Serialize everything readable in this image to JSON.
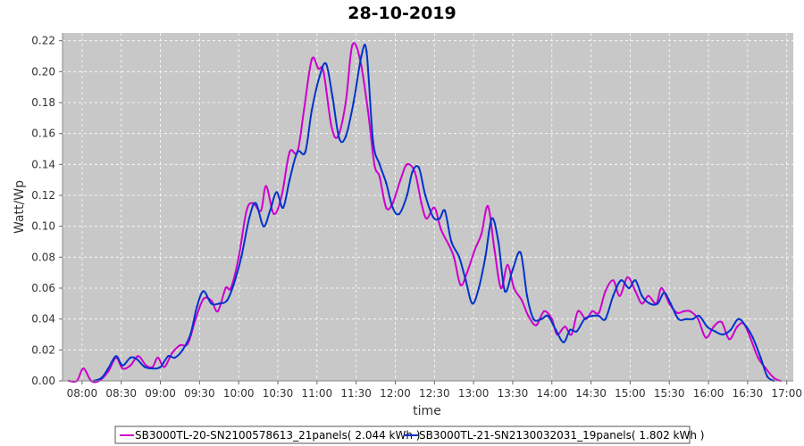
{
  "chart_data": {
    "type": "line",
    "title": "28-10-2019",
    "xlabel": "time",
    "ylabel": "Watt/Wp",
    "xlim": [
      "07:45",
      "17:05"
    ],
    "ylim": [
      0,
      0.225
    ],
    "x_ticks": [
      "08:00",
      "08:30",
      "09:00",
      "09:30",
      "10:00",
      "10:30",
      "11:00",
      "11:30",
      "12:00",
      "12:30",
      "13:00",
      "13:30",
      "14:00",
      "14:30",
      "15:00",
      "15:30",
      "16:00",
      "16:30",
      "17:00"
    ],
    "y_ticks": [
      "0.00",
      "0.02",
      "0.04",
      "0.06",
      "0.08",
      "0.10",
      "0.12",
      "0.14",
      "0.16",
      "0.18",
      "0.20",
      "0.22"
    ],
    "grid": true,
    "legend": "bottom-center",
    "series": [
      {
        "name": "SB3000TL-20-SN2100578613_21panels( 2.044 kWh )",
        "color": "#cc00cc",
        "points": [
          [
            "07:50",
            0.0
          ],
          [
            "07:56",
            0.0
          ],
          [
            "08:01",
            0.008
          ],
          [
            "08:07",
            0.0
          ],
          [
            "08:13",
            0.0
          ],
          [
            "08:20",
            0.006
          ],
          [
            "08:26",
            0.015
          ],
          [
            "08:31",
            0.008
          ],
          [
            "08:37",
            0.01
          ],
          [
            "08:43",
            0.016
          ],
          [
            "08:49",
            0.01
          ],
          [
            "08:54",
            0.009
          ],
          [
            "08:58",
            0.015
          ],
          [
            "09:03",
            0.009
          ],
          [
            "09:09",
            0.018
          ],
          [
            "09:15",
            0.023
          ],
          [
            "09:21",
            0.024
          ],
          [
            "09:27",
            0.04
          ],
          [
            "09:33",
            0.053
          ],
          [
            "09:39",
            0.052
          ],
          [
            "09:44",
            0.045
          ],
          [
            "09:50",
            0.06
          ],
          [
            "09:54",
            0.06
          ],
          [
            "10:00",
            0.08
          ],
          [
            "10:06",
            0.11
          ],
          [
            "10:11",
            0.115
          ],
          [
            "10:17",
            0.11
          ],
          [
            "10:21",
            0.126
          ],
          [
            "10:27",
            0.108
          ],
          [
            "10:33",
            0.12
          ],
          [
            "10:39",
            0.148
          ],
          [
            "10:45",
            0.148
          ],
          [
            "10:50",
            0.175
          ],
          [
            "10:56",
            0.208
          ],
          [
            "11:01",
            0.202
          ],
          [
            "11:05",
            0.2
          ],
          [
            "11:11",
            0.165
          ],
          [
            "11:16",
            0.158
          ],
          [
            "11:22",
            0.18
          ],
          [
            "11:27",
            0.217
          ],
          [
            "11:33",
            0.208
          ],
          [
            "11:39",
            0.175
          ],
          [
            "11:44",
            0.14
          ],
          [
            "11:48",
            0.132
          ],
          [
            "11:53",
            0.112
          ],
          [
            "11:58",
            0.115
          ],
          [
            "12:04",
            0.13
          ],
          [
            "12:09",
            0.14
          ],
          [
            "12:15",
            0.135
          ],
          [
            "12:20",
            0.115
          ],
          [
            "12:24",
            0.105
          ],
          [
            "12:30",
            0.112
          ],
          [
            "12:35",
            0.098
          ],
          [
            "12:41",
            0.088
          ],
          [
            "12:45",
            0.08
          ],
          [
            "12:50",
            0.062
          ],
          [
            "12:55",
            0.07
          ],
          [
            "13:01",
            0.085
          ],
          [
            "13:06",
            0.095
          ],
          [
            "13:11",
            0.113
          ],
          [
            "13:16",
            0.085
          ],
          [
            "13:21",
            0.06
          ],
          [
            "13:26",
            0.075
          ],
          [
            "13:31",
            0.06
          ],
          [
            "13:37",
            0.052
          ],
          [
            "13:42",
            0.042
          ],
          [
            "13:48",
            0.036
          ],
          [
            "13:54",
            0.045
          ],
          [
            "14:00",
            0.04
          ],
          [
            "14:04",
            0.03
          ],
          [
            "14:10",
            0.035
          ],
          [
            "14:15",
            0.03
          ],
          [
            "14:20",
            0.045
          ],
          [
            "14:26",
            0.04
          ],
          [
            "14:31",
            0.045
          ],
          [
            "14:36",
            0.044
          ],
          [
            "14:41",
            0.058
          ],
          [
            "14:47",
            0.065
          ],
          [
            "14:52",
            0.055
          ],
          [
            "14:58",
            0.067
          ],
          [
            "15:04",
            0.058
          ],
          [
            "15:09",
            0.05
          ],
          [
            "15:14",
            0.055
          ],
          [
            "15:20",
            0.05
          ],
          [
            "15:24",
            0.06
          ],
          [
            "15:30",
            0.05
          ],
          [
            "15:36",
            0.044
          ],
          [
            "15:41",
            0.045
          ],
          [
            "15:46",
            0.045
          ],
          [
            "15:52",
            0.04
          ],
          [
            "15:58",
            0.028
          ],
          [
            "16:04",
            0.035
          ],
          [
            "16:10",
            0.038
          ],
          [
            "16:16",
            0.027
          ],
          [
            "16:22",
            0.035
          ],
          [
            "16:27",
            0.037
          ],
          [
            "16:32",
            0.028
          ],
          [
            "16:38",
            0.015
          ],
          [
            "16:44",
            0.008
          ],
          [
            "16:50",
            0.002
          ],
          [
            "16:55",
            0.0
          ]
        ]
      },
      {
        "name": "SB3000TL-21-SN2130032031_19panels( 1.802 kWh )",
        "color": "#0033cc",
        "points": [
          [
            "08:09",
            0.0
          ],
          [
            "08:15",
            0.002
          ],
          [
            "08:20",
            0.008
          ],
          [
            "08:26",
            0.016
          ],
          [
            "08:31",
            0.01
          ],
          [
            "08:37",
            0.015
          ],
          [
            "08:42",
            0.014
          ],
          [
            "08:48",
            0.009
          ],
          [
            "08:54",
            0.008
          ],
          [
            "09:00",
            0.009
          ],
          [
            "09:06",
            0.016
          ],
          [
            "09:11",
            0.015
          ],
          [
            "09:17",
            0.02
          ],
          [
            "09:23",
            0.03
          ],
          [
            "09:28",
            0.048
          ],
          [
            "09:33",
            0.058
          ],
          [
            "09:39",
            0.05
          ],
          [
            "09:45",
            0.05
          ],
          [
            "09:51",
            0.052
          ],
          [
            "09:56",
            0.062
          ],
          [
            "10:02",
            0.08
          ],
          [
            "10:08",
            0.105
          ],
          [
            "10:13",
            0.115
          ],
          [
            "10:19",
            0.1
          ],
          [
            "10:24",
            0.11
          ],
          [
            "10:29",
            0.122
          ],
          [
            "10:34",
            0.112
          ],
          [
            "10:39",
            0.13
          ],
          [
            "10:45",
            0.148
          ],
          [
            "10:51",
            0.148
          ],
          [
            "10:56",
            0.175
          ],
          [
            "11:02",
            0.197
          ],
          [
            "11:07",
            0.205
          ],
          [
            "11:12",
            0.183
          ],
          [
            "11:17",
            0.157
          ],
          [
            "11:22",
            0.158
          ],
          [
            "11:28",
            0.18
          ],
          [
            "11:34",
            0.21
          ],
          [
            "11:38",
            0.213
          ],
          [
            "11:43",
            0.155
          ],
          [
            "11:48",
            0.14
          ],
          [
            "11:53",
            0.128
          ],
          [
            "11:58",
            0.112
          ],
          [
            "12:03",
            0.108
          ],
          [
            "12:09",
            0.12
          ],
          [
            "12:13",
            0.135
          ],
          [
            "12:18",
            0.138
          ],
          [
            "12:23",
            0.12
          ],
          [
            "12:29",
            0.106
          ],
          [
            "12:34",
            0.105
          ],
          [
            "12:38",
            0.11
          ],
          [
            "12:43",
            0.09
          ],
          [
            "12:49",
            0.08
          ],
          [
            "12:54",
            0.065
          ],
          [
            "12:59",
            0.05
          ],
          [
            "13:04",
            0.06
          ],
          [
            "13:09",
            0.08
          ],
          [
            "13:14",
            0.105
          ],
          [
            "13:19",
            0.09
          ],
          [
            "13:24",
            0.058
          ],
          [
            "13:30",
            0.072
          ],
          [
            "13:36",
            0.083
          ],
          [
            "13:41",
            0.055
          ],
          [
            "13:46",
            0.04
          ],
          [
            "13:52",
            0.04
          ],
          [
            "13:57",
            0.042
          ],
          [
            "14:03",
            0.033
          ],
          [
            "14:09",
            0.025
          ],
          [
            "14:14",
            0.033
          ],
          [
            "14:19",
            0.032
          ],
          [
            "14:25",
            0.04
          ],
          [
            "14:31",
            0.042
          ],
          [
            "14:36",
            0.042
          ],
          [
            "14:41",
            0.04
          ],
          [
            "14:47",
            0.055
          ],
          [
            "14:53",
            0.065
          ],
          [
            "14:59",
            0.06
          ],
          [
            "15:04",
            0.065
          ],
          [
            "15:09",
            0.055
          ],
          [
            "15:15",
            0.05
          ],
          [
            "15:21",
            0.05
          ],
          [
            "15:26",
            0.057
          ],
          [
            "15:31",
            0.05
          ],
          [
            "15:37",
            0.04
          ],
          [
            "15:43",
            0.04
          ],
          [
            "15:48",
            0.04
          ],
          [
            "15:53",
            0.042
          ],
          [
            "15:59",
            0.035
          ],
          [
            "16:05",
            0.032
          ],
          [
            "16:11",
            0.03
          ],
          [
            "16:17",
            0.033
          ],
          [
            "16:23",
            0.04
          ],
          [
            "16:29",
            0.035
          ],
          [
            "16:34",
            0.028
          ],
          [
            "16:40",
            0.015
          ],
          [
            "16:45",
            0.003
          ],
          [
            "16:50",
            0.0
          ]
        ]
      }
    ]
  }
}
